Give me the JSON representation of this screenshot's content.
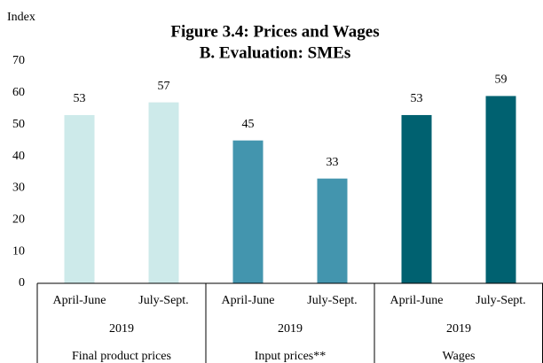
{
  "chart_data": {
    "type": "bar",
    "title": "Figure 3.4: Prices and Wages",
    "subtitle": "B. Evaluation: SMEs",
    "y_label": "Index",
    "categories": [
      "April-June",
      "July-Sept.",
      "April-June",
      "July-Sept.",
      "April-June",
      "July-Sept."
    ],
    "values": [
      53,
      57,
      45,
      33,
      53,
      59
    ],
    "colors": [
      "#cdeaea",
      "#cdeaea",
      "#4395ae",
      "#4395ae",
      "#006170",
      "#006170"
    ],
    "groups": [
      {
        "year": "2019",
        "name": "Final product prices"
      },
      {
        "year": "2019",
        "name": "Input prices**"
      },
      {
        "year": "2019",
        "name": "Wages"
      }
    ],
    "ylim": [
      0,
      70
    ],
    "yticks": [
      0,
      10,
      20,
      30,
      40,
      50,
      60,
      70
    ]
  }
}
